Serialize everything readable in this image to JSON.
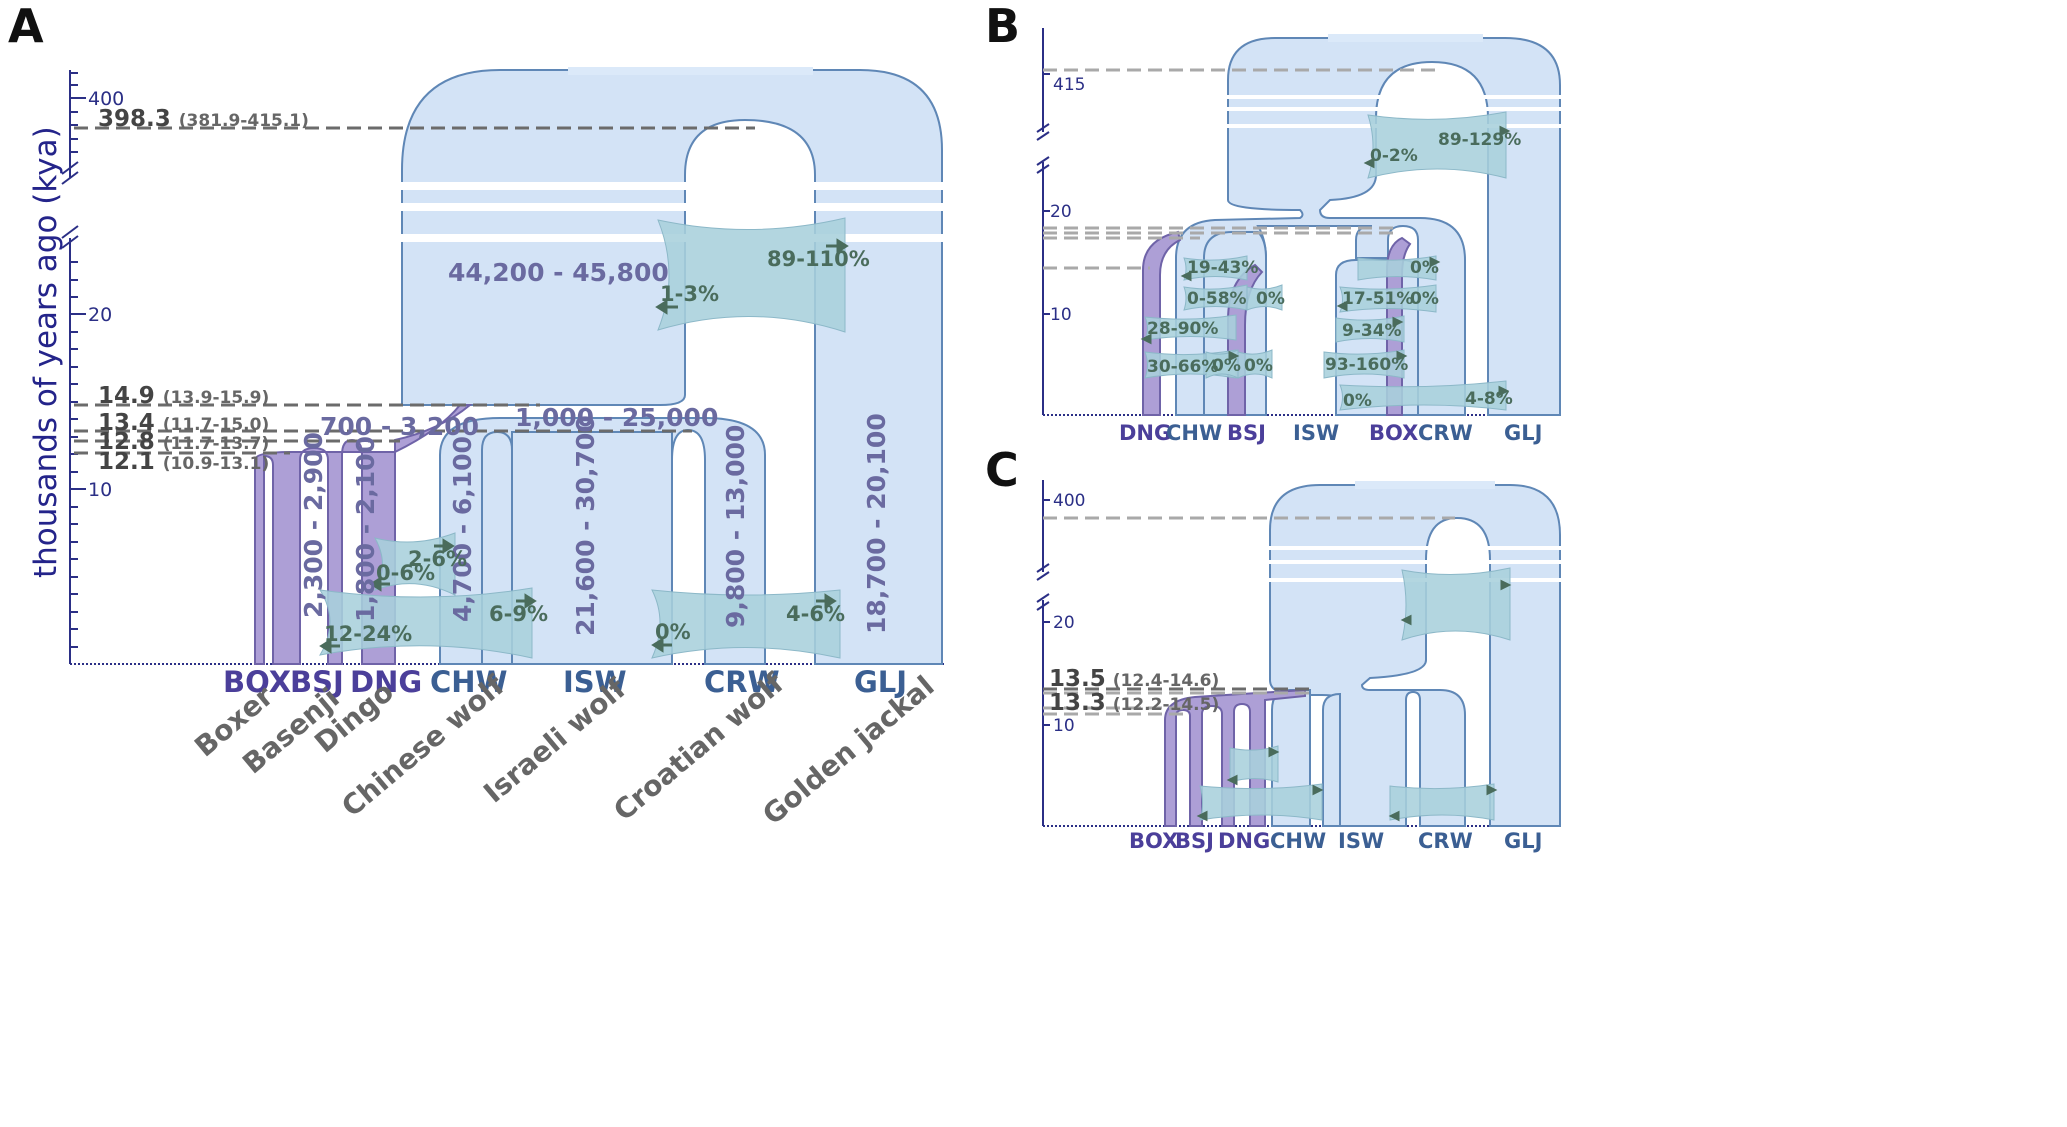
{
  "panels": {
    "a": {
      "letter": "A"
    },
    "b": {
      "letter": "B"
    },
    "c": {
      "letter": "C"
    }
  },
  "axis": {
    "title": "thousands of years ago (kya)",
    "a_ticks": [
      "400",
      "20",
      "10"
    ],
    "b_ticks": [
      "415",
      "20",
      "10"
    ],
    "c_ticks": [
      "400",
      "20",
      "10"
    ]
  },
  "a_times": [
    {
      "value": "398.3",
      "ci": "(381.9-415.1)"
    },
    {
      "value": "14.9",
      "ci": "(13.9-15.9)"
    },
    {
      "value": "13.4",
      "ci": "(11.7-15.0)"
    },
    {
      "value": "12.8",
      "ci": "(11.7-13.7)"
    },
    {
      "value": "12.1",
      "ci": "(10.9-13.1)"
    }
  ],
  "c_times": [
    {
      "value": "13.5",
      "ci": "(12.4-14.6)"
    },
    {
      "value": "13.3",
      "ci": "(12.2-14.5)"
    }
  ],
  "a_sizes": {
    "ancestral": "44,200 - 45,800",
    "dog_ancestral": "700 - 3,200",
    "wolf_ancestral": "1,000 - 25,000",
    "bsj": "2,300 - 2,900",
    "dng": "1,800 - 2,100",
    "chw": "4,700 - 6,100",
    "isw": "21,600 - 30,700",
    "crw": "9,800 - 13,000",
    "glj": "18,700 - 20,100"
  },
  "a_migration": {
    "anc_1": "89-110%",
    "anc_2": "1-3%",
    "m_2_6": "2-6%",
    "m_0_6": "0-6%",
    "m_6_9": "6-9%",
    "m_12_24": "12-24%",
    "m_0": "0%",
    "m_4_6": "4-6%"
  },
  "b_migration": [
    "89-129%",
    "0-2%",
    "19-43%",
    "0-58%",
    "0%",
    "28-90%",
    "30-66%",
    "0%",
    "0%",
    "0%",
    "0%",
    "17-51%",
    "9-34%",
    "93-160%",
    "0%",
    "4-8%"
  ],
  "codes": {
    "box": "BOX",
    "bsj": "BSJ",
    "dng": "DNG",
    "chw": "CHW",
    "isw": "ISW",
    "crw": "CRW",
    "glj": "GLJ"
  },
  "common_names": [
    "Boxer",
    "Basenji",
    "Dingo",
    "Chinese wolf",
    "Israeli wolf",
    "Croatian wolf",
    "Golden jackal"
  ],
  "colors": {
    "population": "#d3e3f6",
    "population_edge": "#5f87b6",
    "dog": "#ad9fd6",
    "migration": "#a9d0dc",
    "axis": "#2b2f86"
  }
}
